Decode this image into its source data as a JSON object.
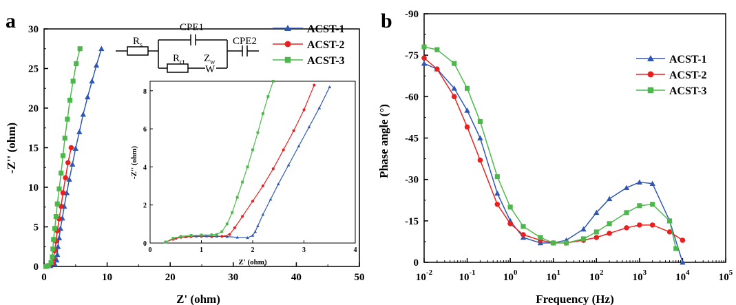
{
  "colors": {
    "ACST-1": "#2e57b3",
    "ACST-2": "#e82020",
    "ACST-3": "#4cb84c"
  },
  "chart_data": [
    {
      "panel": "a",
      "type": "scatter",
      "xlabel": "Z' (ohm)",
      "ylabel": "-Z'' (ohm)",
      "xlim": [
        0,
        50
      ],
      "ylim": [
        0,
        30
      ],
      "xticks": [
        "0",
        "10",
        "20",
        "30",
        "40",
        "50"
      ],
      "yticks": [
        "0",
        "5",
        "10",
        "15",
        "20",
        "25",
        "30"
      ],
      "legend_position": "top-right",
      "circuit_labels": {
        "rs": "R",
        "rs_sub": "s",
        "cpe1": "CPE1",
        "rct": "R",
        "rct_sub": "ct",
        "zw": "Z",
        "zw_sub": "w",
        "zw_symbol": "W",
        "cpe2": "CPE2"
      },
      "series": [
        {
          "name": "ACST-1",
          "marker": "triangle",
          "x": [
            0.3,
            1.0,
            1.7,
            2.0,
            2.1,
            2.2,
            2.4,
            2.6,
            2.9,
            3.2,
            3.6,
            4.0,
            4.5,
            5.0,
            5.6,
            6.2,
            6.9,
            7.6,
            8.3,
            9.1
          ],
          "y": [
            0.0,
            0.1,
            0.3,
            0.8,
            1.5,
            2.5,
            3.6,
            4.8,
            6.1,
            7.6,
            9.3,
            11.0,
            12.9,
            14.9,
            17.0,
            19.2,
            21.4,
            23.4,
            25.4,
            27.5
          ]
        },
        {
          "name": "ACST-2",
          "marker": "circle",
          "x": [
            0.3,
            0.8,
            1.3,
            1.5,
            1.7,
            1.9,
            2.1,
            2.4,
            2.7,
            3.0,
            3.4,
            3.8,
            4.3
          ],
          "y": [
            0.0,
            0.1,
            0.4,
            1.0,
            2.0,
            3.2,
            4.5,
            6.0,
            7.6,
            9.3,
            11.2,
            13.1,
            15.0
          ]
        },
        {
          "name": "ACST-3",
          "marker": "square",
          "x": [
            0.3,
            0.7,
            1.1,
            1.3,
            1.4,
            1.5,
            1.7,
            1.9,
            2.1,
            2.4,
            2.7,
            3.0,
            3.3,
            3.7,
            4.1,
            4.6,
            5.1,
            5.7
          ],
          "y": [
            0.0,
            0.1,
            0.5,
            1.2,
            2.2,
            3.4,
            4.8,
            6.3,
            7.9,
            9.8,
            11.8,
            14.0,
            16.2,
            18.6,
            21.0,
            23.4,
            25.6,
            27.5
          ]
        }
      ],
      "inset": {
        "xlabel": "Z' (ohm)",
        "ylabel": "-Z'' (ohm)",
        "xlim": [
          0,
          4
        ],
        "ylim": [
          0,
          8.5
        ],
        "xticks": [
          "0",
          "1",
          "2",
          "3",
          "4"
        ],
        "yticks": [
          "0",
          "2",
          "4",
          "6",
          "8"
        ],
        "series": [
          {
            "name": "ACST-1",
            "x": [
              0.3,
              0.5,
              0.7,
              0.9,
              1.1,
              1.3,
              1.5,
              1.7,
              1.9,
              2.0,
              2.05,
              2.1,
              2.2,
              2.35,
              2.5,
              2.7,
              2.9,
              3.1,
              3.3,
              3.5
            ],
            "y": [
              0.05,
              0.25,
              0.33,
              0.36,
              0.37,
              0.36,
              0.34,
              0.3,
              0.28,
              0.4,
              0.6,
              0.9,
              1.5,
              2.3,
              3.1,
              4.1,
              5.1,
              6.1,
              7.1,
              8.2
            ]
          },
          {
            "name": "ACST-2",
            "x": [
              0.3,
              0.45,
              0.6,
              0.8,
              1.0,
              1.2,
              1.4,
              1.55,
              1.65,
              1.8,
              2.0,
              2.2,
              2.4,
              2.6,
              2.8,
              3.0,
              3.2
            ],
            "y": [
              0.05,
              0.2,
              0.3,
              0.34,
              0.35,
              0.34,
              0.35,
              0.45,
              0.8,
              1.4,
              2.2,
              3.0,
              3.9,
              4.9,
              5.9,
              7.0,
              8.3
            ]
          },
          {
            "name": "ACST-3",
            "x": [
              0.3,
              0.45,
              0.6,
              0.8,
              1.0,
              1.2,
              1.3,
              1.4,
              1.5,
              1.6,
              1.7,
              1.8,
              1.9,
              2.0,
              2.1,
              2.2,
              2.3,
              2.4
            ],
            "y": [
              0.05,
              0.25,
              0.35,
              0.4,
              0.42,
              0.43,
              0.45,
              0.6,
              1.0,
              1.6,
              2.4,
              3.2,
              4.0,
              4.9,
              5.8,
              6.8,
              7.7,
              8.5
            ]
          }
        ]
      }
    },
    {
      "panel": "b",
      "type": "scatter",
      "xlabel": "Frequency (Hz)",
      "ylabel": "Phase angle (°)",
      "xscale": "log",
      "xlim": [
        0.01,
        100000
      ],
      "ylim": [
        0,
        -90
      ],
      "xticks": [
        {
          "base": "10",
          "exp": "-2"
        },
        {
          "base": "10",
          "exp": "-1"
        },
        {
          "base": "10",
          "exp": "0"
        },
        {
          "base": "10",
          "exp": "1"
        },
        {
          "base": "10",
          "exp": "2"
        },
        {
          "base": "10",
          "exp": "3"
        },
        {
          "base": "10",
          "exp": "4"
        },
        {
          "base": "10",
          "exp": "5"
        }
      ],
      "yticks": [
        "0",
        "-15",
        "-30",
        "-45",
        "-60",
        "-75",
        "-90"
      ],
      "legend_position": "top-right",
      "series": [
        {
          "name": "ACST-1",
          "marker": "triangle",
          "x": [
            0.01,
            0.02,
            0.05,
            0.1,
            0.2,
            0.5,
            1,
            2,
            5,
            10,
            20,
            50,
            100,
            200,
            500,
            1000,
            2000,
            5000,
            10000
          ],
          "y": [
            -72,
            -70,
            -63,
            -55,
            -45,
            -25,
            -15,
            -9,
            -7,
            -7,
            -8,
            -12,
            -18,
            -23,
            -27,
            -29,
            -28.5,
            -15,
            0
          ]
        },
        {
          "name": "ACST-2",
          "marker": "circle",
          "x": [
            0.01,
            0.02,
            0.05,
            0.1,
            0.2,
            0.5,
            1,
            2,
            5,
            10,
            20,
            50,
            100,
            200,
            500,
            1000,
            2000,
            5000,
            10000
          ],
          "y": [
            -74,
            -70,
            -60,
            -49,
            -37,
            -21,
            -14,
            -10,
            -8,
            -7,
            -7,
            -8,
            -9,
            -10.5,
            -12.5,
            -13.5,
            -13.5,
            -11,
            -8
          ]
        },
        {
          "name": "ACST-3",
          "marker": "square",
          "x": [
            0.01,
            0.02,
            0.05,
            0.1,
            0.2,
            0.5,
            1,
            2,
            5,
            10,
            20,
            50,
            100,
            200,
            500,
            1000,
            2000,
            5000,
            7000
          ],
          "y": [
            -78,
            -77,
            -72,
            -63,
            -51,
            -31,
            -20,
            -13,
            -9,
            -7,
            -7,
            -8.5,
            -11,
            -14,
            -18,
            -20.5,
            -21,
            -15,
            -5
          ]
        }
      ]
    }
  ]
}
